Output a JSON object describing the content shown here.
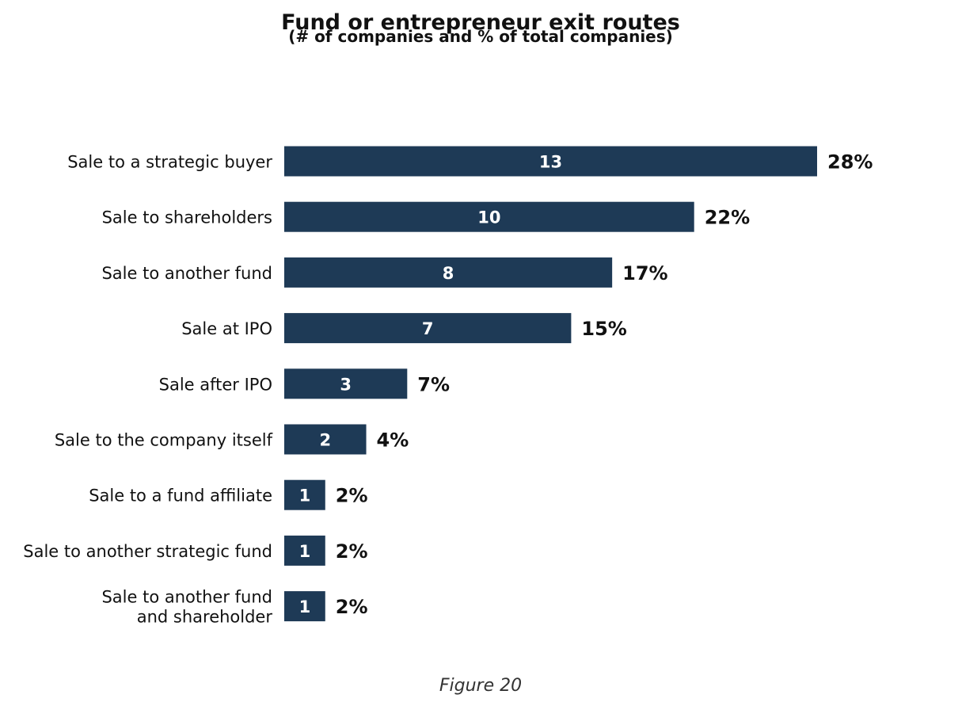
{
  "chart_data": {
    "type": "bar",
    "orientation": "horizontal",
    "title": "Fund or entrepreneur exit routes",
    "subtitle": "(# of companies and % of total companies)",
    "categories": [
      "Sale to a strategic buyer",
      "Sale to shareholders",
      "Sale to another fund",
      "Sale at IPO",
      "Sale after IPO",
      "Sale to the company itself",
      "Sale to a fund affiliate",
      "Sale to another strategic fund",
      "Sale to another fund\nand shareholder"
    ],
    "values": [
      13,
      10,
      8,
      7,
      3,
      2,
      1,
      1,
      1
    ],
    "percentages": [
      "28%",
      "22%",
      "17%",
      "15%",
      "7%",
      "4%",
      "2%",
      "2%",
      "2%"
    ],
    "bar_color": "#1e3a56",
    "xlim": [
      0,
      13
    ],
    "grid": false,
    "legend": "none"
  },
  "caption": "Figure 20"
}
